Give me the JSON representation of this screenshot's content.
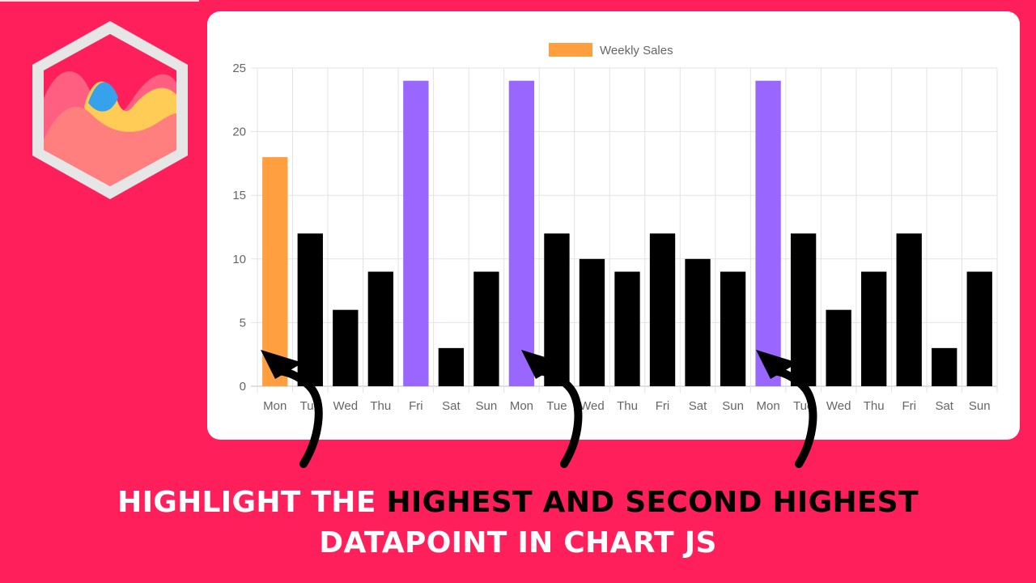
{
  "colors": {
    "background": "#ff1f5a",
    "default_bar": "#000000",
    "highest_bar": "#9966ff",
    "second_highest_bar": "#ff9f40",
    "legend_swatch": "#ff9f40"
  },
  "logo": {
    "icon": "chartjs-logo-icon"
  },
  "headline": {
    "part1": "HIGHLIGHT THE ",
    "part2": "HIGHEST AND SECOND HIGHEST",
    "part3": "DATAPOINT IN CHART JS"
  },
  "chart_data": {
    "type": "bar",
    "legend": {
      "label": "Weekly Sales",
      "position": "top"
    },
    "categories": [
      "Mon",
      "Tue",
      "Wed",
      "Thu",
      "Fri",
      "Sat",
      "Sun",
      "Mon",
      "Tue",
      "Wed",
      "Thu",
      "Fri",
      "Sat",
      "Sun",
      "Mon",
      "Tue",
      "Wed",
      "Thu",
      "Fri",
      "Sat",
      "Sun"
    ],
    "series": [
      {
        "name": "Weekly Sales",
        "values": [
          18,
          12,
          6,
          9,
          24,
          3,
          9,
          24,
          12,
          10,
          9,
          12,
          10,
          9,
          24,
          12,
          6,
          9,
          12,
          3,
          9
        ],
        "colors": [
          "#ff9f40",
          "#000000",
          "#000000",
          "#000000",
          "#9966ff",
          "#000000",
          "#000000",
          "#9966ff",
          "#000000",
          "#000000",
          "#000000",
          "#000000",
          "#000000",
          "#000000",
          "#9966ff",
          "#000000",
          "#000000",
          "#000000",
          "#000000",
          "#000000",
          "#000000"
        ]
      }
    ],
    "ylim": [
      0,
      25
    ],
    "yticks": [
      0,
      5,
      10,
      15,
      20,
      25
    ],
    "grid": true,
    "annotations": [
      "arrow pointing to Mon (orange)",
      "arrow pointing to Mon (purple)",
      "arrow pointing to Mon (purple)"
    ]
  }
}
